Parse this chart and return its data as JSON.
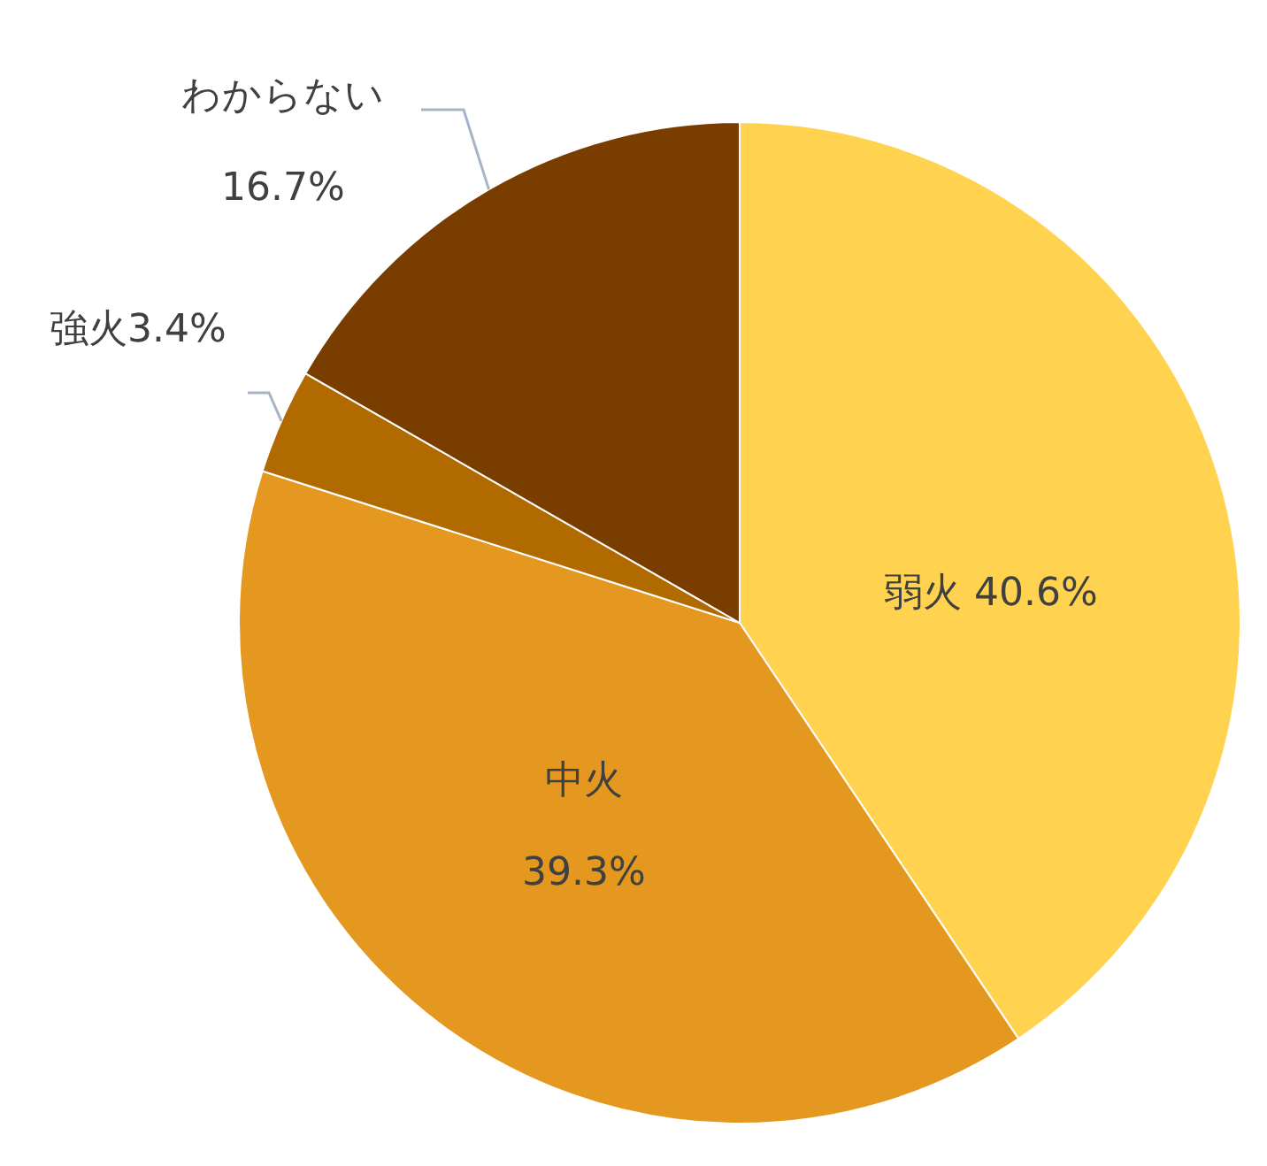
{
  "chart_data": {
    "type": "pie",
    "categories": [
      "弱火",
      "中火",
      "強火",
      "わからない"
    ],
    "values": [
      40.6,
      39.3,
      3.4,
      16.7
    ],
    "colors": [
      "#ffd34f",
      "#e59820",
      "#b06a00",
      "#7a3d00"
    ],
    "value_labels": [
      "40.6%",
      "39.3%",
      "3.4%",
      "16.7%"
    ]
  }
}
